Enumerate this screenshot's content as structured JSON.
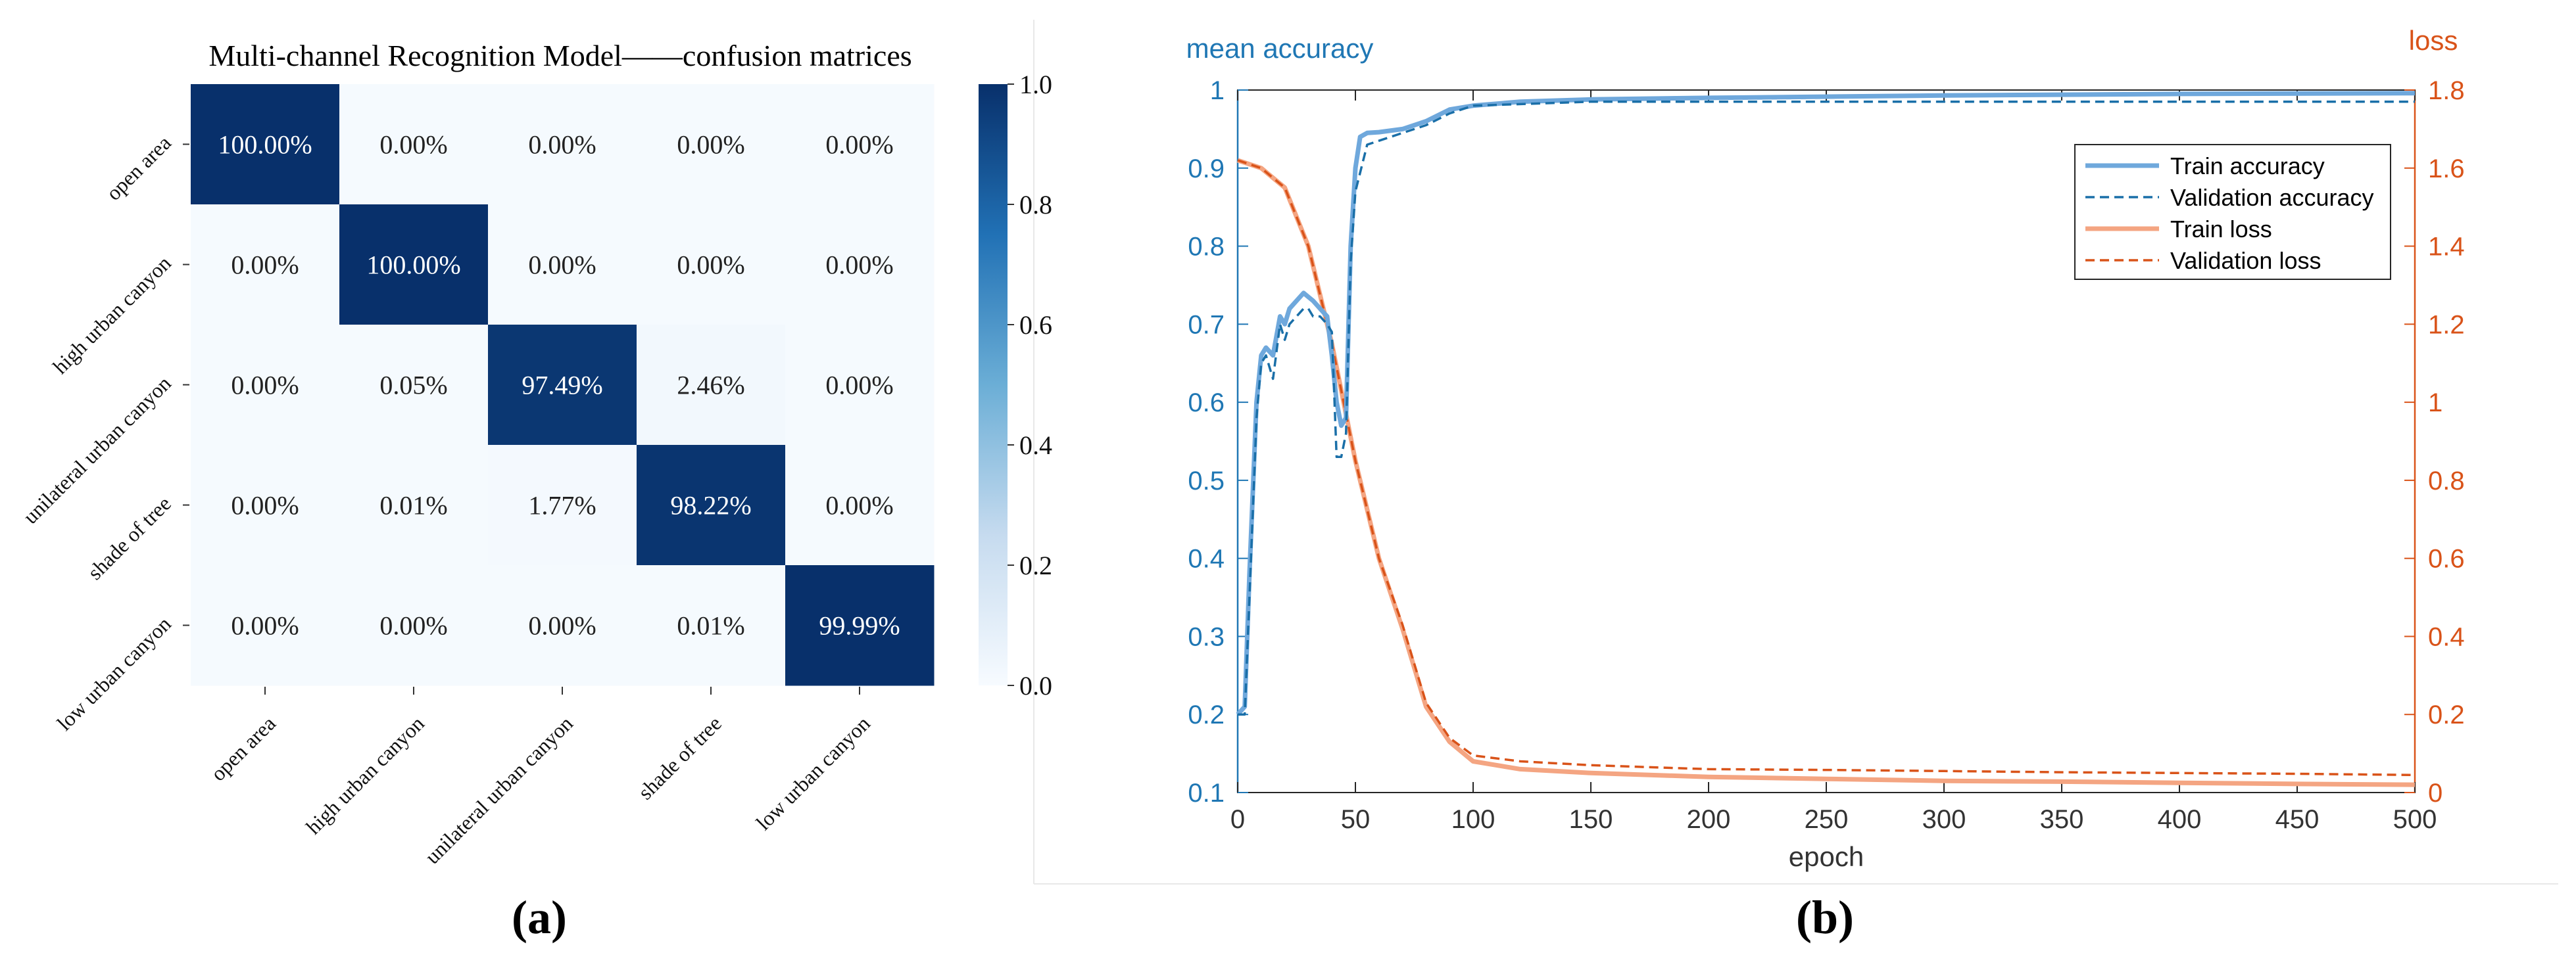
{
  "chart_data": [
    {
      "type": "heatmap",
      "title": "Multi-channel Recognition Model——confusion matrices",
      "panel_label": "(a)",
      "row_labels": [
        "open area",
        "high urban canyon",
        "unilateral urban canyon",
        "shade of tree",
        "low urban canyon"
      ],
      "col_labels": [
        "open area",
        "high urban canyon",
        "unilateral urban canyon",
        "shade of tree",
        "low urban canyon"
      ],
      "values": [
        [
          1.0,
          0.0,
          0.0,
          0.0,
          0.0
        ],
        [
          0.0,
          1.0,
          0.0,
          0.0,
          0.0
        ],
        [
          0.0,
          0.0005,
          0.9749,
          0.0246,
          0.0
        ],
        [
          0.0,
          0.0001,
          0.0177,
          0.9822,
          0.0
        ],
        [
          0.0,
          0.0,
          0.0,
          0.0001,
          0.9999
        ]
      ],
      "cell_text": [
        [
          "100.00%",
          "0.00%",
          "0.00%",
          "0.00%",
          "0.00%"
        ],
        [
          "0.00%",
          "100.00%",
          "0.00%",
          "0.00%",
          "0.00%"
        ],
        [
          "0.00%",
          "0.05%",
          "97.49%",
          "2.46%",
          "0.00%"
        ],
        [
          "0.00%",
          "0.01%",
          "1.77%",
          "98.22%",
          "0.00%"
        ],
        [
          "0.00%",
          "0.00%",
          "0.00%",
          "0.01%",
          "99.99%"
        ]
      ],
      "colorbar": {
        "range": [
          0.0,
          1.0
        ],
        "ticks": [
          "1.0",
          "0.8",
          "0.6",
          "0.4",
          "0.2",
          "0.0"
        ],
        "colors": [
          "#f7fbff",
          "#c6dbef",
          "#6baed6",
          "#2171b5",
          "#08306b"
        ]
      }
    },
    {
      "type": "line",
      "panel_label": "(b)",
      "xlabel": "epoch",
      "ylabel_left": "mean accuracy",
      "ylabel_right": "loss",
      "xlim": [
        0,
        500
      ],
      "ylim_left": [
        0.1,
        1.0
      ],
      "ylim_right": [
        0,
        1.8
      ],
      "x_ticks": [
        "0",
        "50",
        "100",
        "150",
        "200",
        "250",
        "300",
        "350",
        "400",
        "450",
        "500"
      ],
      "y_ticks_left": [
        "1",
        "0.9",
        "0.8",
        "0.7",
        "0.6",
        "0.5",
        "0.4",
        "0.3",
        "0.2",
        "0.1"
      ],
      "y_ticks_right": [
        "1.8",
        "1.6",
        "1.4",
        "1.2",
        "1",
        "0.8",
        "0.6",
        "0.4",
        "0.2",
        "0"
      ],
      "grid": false,
      "legend_position": "top-right",
      "colors": {
        "accuracy_axis": "#1f77b4",
        "loss_axis": "#d95319",
        "train_accuracy": "#6fa8dc",
        "validation_accuracy": "#1a6fa8",
        "train_loss": "#f4a582",
        "validation_loss": "#d95319"
      },
      "series": [
        {
          "name": "Train accuracy",
          "axis": "left",
          "style": "solid",
          "x": [
            0,
            3,
            5,
            8,
            10,
            12,
            15,
            18,
            20,
            22,
            25,
            28,
            30,
            32,
            35,
            38,
            40,
            42,
            44,
            46,
            48,
            50,
            52,
            55,
            60,
            70,
            80,
            90,
            100,
            120,
            150,
            200,
            300,
            400,
            500
          ],
          "y": [
            0.2,
            0.21,
            0.38,
            0.6,
            0.66,
            0.67,
            0.66,
            0.71,
            0.7,
            0.72,
            0.73,
            0.74,
            0.735,
            0.73,
            0.72,
            0.71,
            0.66,
            0.6,
            0.57,
            0.58,
            0.8,
            0.9,
            0.94,
            0.945,
            0.946,
            0.95,
            0.96,
            0.975,
            0.98,
            0.985,
            0.988,
            0.99,
            0.993,
            0.995,
            0.996
          ]
        },
        {
          "name": "Validation accuracy",
          "axis": "left",
          "style": "dashed",
          "x": [
            0,
            3,
            5,
            8,
            10,
            12,
            15,
            18,
            20,
            22,
            25,
            28,
            30,
            32,
            35,
            38,
            40,
            42,
            44,
            46,
            48,
            50,
            55,
            60,
            70,
            80,
            90,
            100,
            150,
            200,
            300,
            400,
            500
          ],
          "y": [
            0.2,
            0.2,
            0.35,
            0.58,
            0.65,
            0.66,
            0.63,
            0.7,
            0.68,
            0.7,
            0.71,
            0.72,
            0.72,
            0.71,
            0.71,
            0.7,
            0.69,
            0.53,
            0.53,
            0.56,
            0.78,
            0.87,
            0.93,
            0.935,
            0.945,
            0.955,
            0.97,
            0.98,
            0.985,
            0.985,
            0.985,
            0.985,
            0.985
          ]
        },
        {
          "name": "Train loss",
          "axis": "right",
          "style": "solid",
          "x": [
            0,
            10,
            20,
            30,
            40,
            50,
            60,
            70,
            80,
            90,
            100,
            120,
            150,
            200,
            250,
            300,
            350,
            400,
            450,
            500
          ],
          "y": [
            1.62,
            1.6,
            1.55,
            1.4,
            1.15,
            0.85,
            0.6,
            0.42,
            0.22,
            0.13,
            0.08,
            0.06,
            0.05,
            0.04,
            0.035,
            0.03,
            0.028,
            0.025,
            0.022,
            0.02
          ]
        },
        {
          "name": "Validation loss",
          "axis": "right",
          "style": "dashed",
          "x": [
            0,
            10,
            20,
            30,
            40,
            50,
            60,
            70,
            80,
            90,
            100,
            120,
            150,
            200,
            250,
            300,
            350,
            400,
            450,
            500
          ],
          "y": [
            1.62,
            1.6,
            1.55,
            1.4,
            1.15,
            0.85,
            0.6,
            0.43,
            0.23,
            0.14,
            0.095,
            0.08,
            0.07,
            0.06,
            0.058,
            0.055,
            0.052,
            0.05,
            0.048,
            0.045
          ]
        }
      ]
    }
  ]
}
